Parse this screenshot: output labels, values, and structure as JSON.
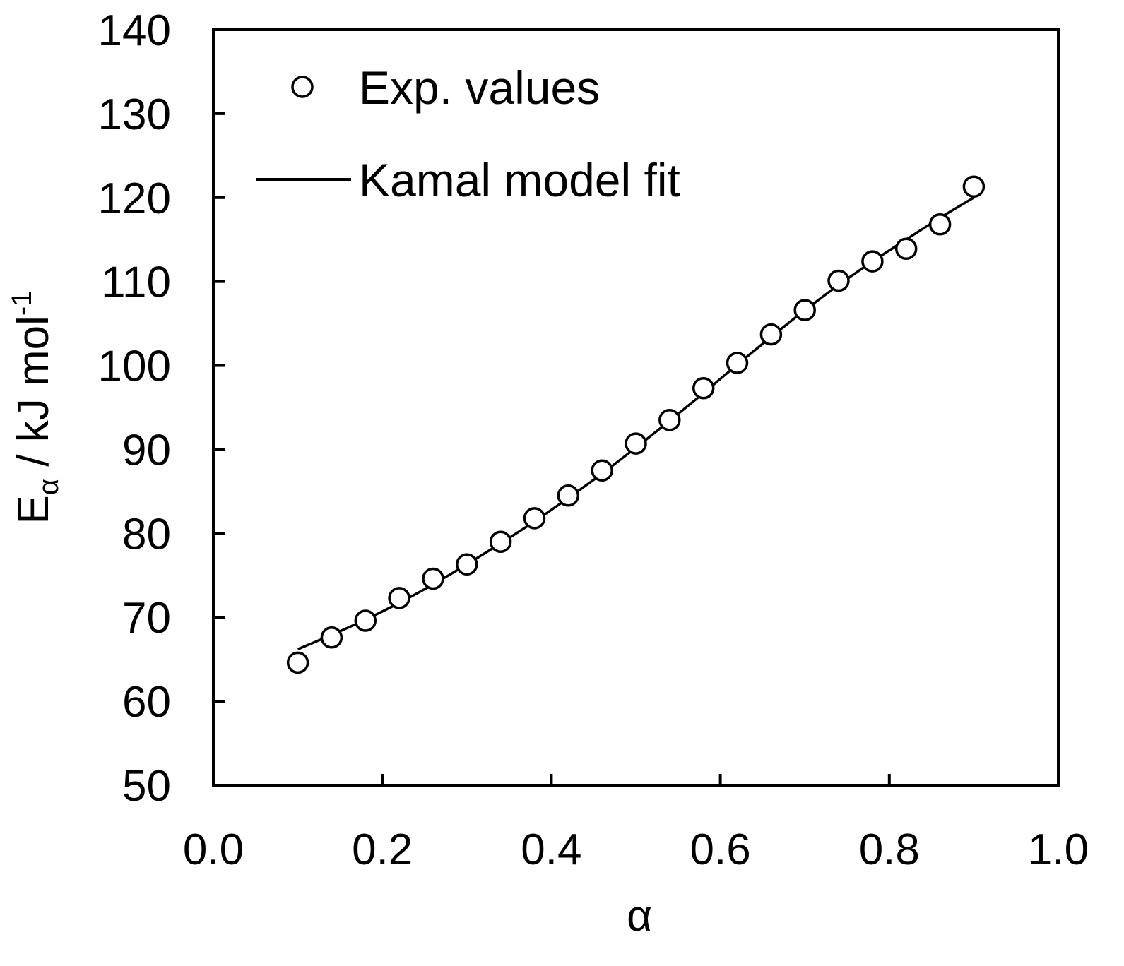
{
  "chart_data": {
    "type": "scatter",
    "title": "",
    "xlabel": "α",
    "ylabel_main": "E",
    "ylabel_sub": "α",
    "ylabel_rest": " / kJ mol",
    "ylabel_sup": "-1",
    "xlim": [
      0.0,
      1.0
    ],
    "ylim": [
      50,
      140
    ],
    "xticks": [
      "0.0",
      "0.2",
      "0.4",
      "0.6",
      "0.8",
      "1.0"
    ],
    "yticks": [
      "50",
      "60",
      "70",
      "80",
      "90",
      "100",
      "110",
      "120",
      "130",
      "140"
    ],
    "grid": false,
    "legend_position": "top-left",
    "series": [
      {
        "name": "Exp. values",
        "kind": "scatter",
        "marker": "open-circle",
        "x": [
          0.1,
          0.14,
          0.18,
          0.22,
          0.26,
          0.3,
          0.34,
          0.38,
          0.42,
          0.46,
          0.5,
          0.54,
          0.58,
          0.62,
          0.66,
          0.7,
          0.74,
          0.78,
          0.82,
          0.86,
          0.9
        ],
        "y": [
          64.6,
          67.6,
          69.6,
          72.3,
          74.6,
          76.3,
          79.0,
          81.8,
          84.5,
          87.5,
          90.7,
          93.5,
          97.3,
          100.3,
          103.7,
          106.6,
          110.1,
          112.4,
          113.9,
          116.8,
          121.3
        ]
      },
      {
        "name": "Kamal model fit",
        "kind": "line",
        "x": [
          0.1,
          0.14,
          0.18,
          0.22,
          0.26,
          0.3,
          0.34,
          0.38,
          0.42,
          0.46,
          0.5,
          0.54,
          0.58,
          0.62,
          0.66,
          0.7,
          0.74,
          0.78,
          0.82,
          0.86,
          0.9
        ],
        "y": [
          66.2,
          67.9,
          69.7,
          71.7,
          73.9,
          76.3,
          78.8,
          81.4,
          84.2,
          87.1,
          90.2,
          93.4,
          96.7,
          100.1,
          103.4,
          106.6,
          109.6,
          112.4,
          115.0,
          117.6,
          120.0
        ]
      }
    ]
  }
}
